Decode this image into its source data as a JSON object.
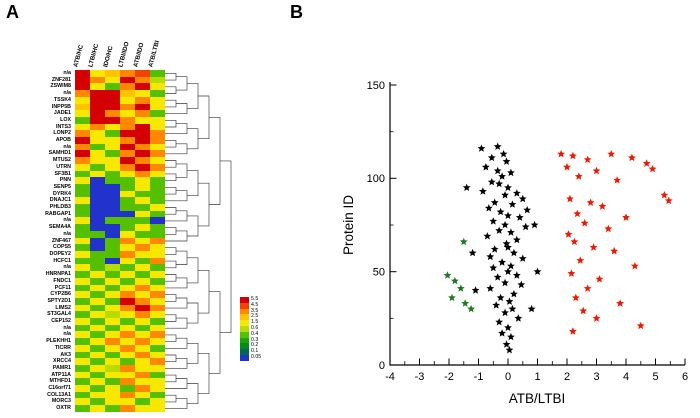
{
  "figure": {
    "panel_a_label": "A",
    "panel_b_label": "B"
  },
  "chart_data": [
    {
      "type": "heatmap",
      "panel": "A",
      "columns": [
        "ATB/HC",
        "LTBI/HC",
        "IDO/HC",
        "LTBI/IDO",
        "ATB/IDO",
        "ATB/LTBI"
      ],
      "rows": [
        "n/a",
        "ZNF281",
        "ZSWIM8",
        "n/a",
        "TSSK4",
        "INPP5B",
        "JADE1",
        "LOX",
        "INTS3",
        "LONP2",
        "APOB",
        "n/a",
        "SAMHD1",
        "MTUS2",
        "UTRN",
        "SF3B1",
        "PNN",
        "SENP5",
        "DYRK4",
        "DNAJC1",
        "PHLDB3",
        "RABGAP1",
        "n/a",
        "SEMA4A",
        "n/a",
        "ZNF467",
        "COPS5",
        "DOPEY2",
        "HCFC1",
        "n/a",
        "HNRNPA1",
        "FNDC1",
        "PCF11",
        "CYP2B6",
        "SPTY2D1",
        "LIMS2",
        "ST3GAL4",
        "CEP152",
        "n/a",
        "n/a",
        "PLEKHH1",
        "TICRR",
        "AK3",
        "XRCC4",
        "PAMR1",
        "ATP11A",
        "MTHFD1",
        "C16orf71",
        "COL13A1",
        "MORC3",
        "OXTR"
      ],
      "values": [
        [
          5.2,
          1.3,
          2.0,
          3.2,
          4.0,
          0.38
        ],
        [
          5.2,
          3.2,
          1.3,
          5.2,
          3.2,
          0.55
        ],
        [
          5.2,
          1.3,
          0.38,
          3.2,
          5.2,
          1.3
        ],
        [
          3.2,
          5.2,
          5.2,
          2.0,
          1.3,
          0.38
        ],
        [
          1.3,
          5.2,
          5.2,
          1.3,
          3.2,
          1.3
        ],
        [
          2.0,
          5.2,
          5.2,
          3.2,
          5.2,
          1.3
        ],
        [
          1.3,
          5.2,
          3.2,
          1.3,
          3.2,
          0.38
        ],
        [
          0.38,
          5.2,
          5.2,
          3.2,
          1.3,
          1.3
        ],
        [
          1.3,
          3.2,
          1.3,
          3.2,
          5.2,
          1.3
        ],
        [
          3.2,
          1.3,
          0.38,
          5.2,
          5.2,
          3.2
        ],
        [
          5.2,
          1.3,
          1.3,
          3.2,
          5.2,
          3.2
        ],
        [
          3.2,
          0.38,
          1.3,
          5.2,
          3.2,
          1.3
        ],
        [
          5.2,
          1.3,
          0.38,
          3.2,
          5.2,
          3.2
        ],
        [
          3.2,
          1.3,
          1.3,
          5.2,
          3.2,
          1.3
        ],
        [
          1.3,
          0.38,
          1.3,
          3.2,
          5.2,
          3.2
        ],
        [
          0.38,
          1.3,
          0.38,
          1.3,
          3.2,
          1.3
        ],
        [
          1.3,
          0.06,
          0.38,
          0.38,
          1.3,
          0.38
        ],
        [
          0.38,
          0.06,
          0.06,
          0.38,
          1.3,
          0.38
        ],
        [
          0.38,
          0.06,
          0.06,
          1.3,
          0.38,
          0.38
        ],
        [
          1.3,
          0.06,
          0.06,
          0.38,
          1.3,
          0.38
        ],
        [
          0.38,
          0.06,
          0.06,
          0.38,
          0.38,
          1.3
        ],
        [
          0.38,
          0.06,
          0.06,
          0.06,
          1.3,
          0.38
        ],
        [
          1.3,
          0.06,
          0.38,
          0.38,
          0.38,
          0.06
        ],
        [
          0.38,
          0.06,
          0.06,
          0.38,
          1.3,
          0.38
        ],
        [
          0.38,
          0.38,
          0.06,
          1.3,
          0.38,
          0.38
        ],
        [
          1.3,
          0.06,
          0.38,
          3.2,
          1.3,
          3.2
        ],
        [
          0.38,
          0.06,
          0.38,
          1.3,
          3.2,
          1.3
        ],
        [
          1.3,
          0.38,
          0.38,
          3.2,
          1.3,
          1.3
        ],
        [
          0.38,
          0.38,
          0.06,
          1.3,
          0.38,
          3.2
        ],
        [
          1.3,
          0.38,
          0.55,
          0.38,
          1.3,
          0.38
        ],
        [
          0.38,
          1.3,
          0.38,
          1.3,
          0.38,
          1.3
        ],
        [
          1.3,
          0.38,
          1.3,
          0.38,
          1.3,
          0.38
        ],
        [
          0.38,
          1.3,
          0.38,
          1.3,
          3.2,
          1.3
        ],
        [
          1.3,
          0.38,
          1.3,
          3.2,
          1.3,
          3.2
        ],
        [
          0.38,
          1.3,
          0.38,
          5.2,
          3.2,
          1.3
        ],
        [
          1.3,
          0.38,
          1.3,
          3.2,
          5.2,
          3.2
        ],
        [
          0.38,
          1.3,
          0.55,
          1.3,
          3.2,
          1.3
        ],
        [
          1.3,
          0.38,
          1.3,
          0.38,
          1.3,
          0.38
        ],
        [
          0.38,
          1.3,
          0.38,
          1.3,
          0.38,
          1.3
        ],
        [
          1.3,
          0.38,
          1.3,
          3.2,
          1.3,
          3.2
        ],
        [
          0.38,
          1.3,
          3.2,
          1.3,
          3.2,
          1.3
        ],
        [
          1.3,
          0.38,
          1.3,
          3.2,
          1.3,
          0.38
        ],
        [
          0.38,
          1.3,
          0.38,
          1.3,
          3.2,
          1.3
        ],
        [
          1.3,
          0.38,
          1.3,
          0.38,
          1.3,
          3.2
        ],
        [
          0.38,
          1.3,
          0.55,
          3.2,
          1.3,
          1.3
        ],
        [
          1.3,
          0.38,
          1.3,
          1.3,
          3.2,
          0.38
        ],
        [
          0.38,
          1.3,
          0.38,
          3.2,
          1.3,
          1.3
        ],
        [
          1.3,
          0.38,
          1.3,
          0.38,
          3.2,
          1.3
        ],
        [
          0.38,
          1.3,
          1.3,
          3.2,
          1.3,
          0.38
        ],
        [
          1.3,
          0.38,
          1.3,
          1.3,
          0.38,
          1.3
        ],
        [
          0.38,
          1.3,
          0.38,
          3.2,
          1.3,
          1.3
        ]
      ],
      "color_scale": {
        "ticks": [
          5.5,
          4.5,
          3.5,
          2.5,
          1.5,
          0.6,
          0.4,
          0.3,
          0.2,
          0.1,
          0.05
        ],
        "colors": [
          "#d40000",
          "#f04400",
          "#ff8800",
          "#ffc300",
          "#f6e800",
          "#b8dc00",
          "#55c000",
          "#1ea400",
          "#008c1e",
          "#006a50",
          "#2233cc"
        ]
      },
      "legend_position": "right",
      "row_dendrogram": true
    },
    {
      "type": "scatter",
      "panel": "B",
      "xlabel": "ATB/LTBI",
      "ylabel": "Protein ID",
      "xlim": [
        -4,
        6
      ],
      "ylim": [
        0,
        150
      ],
      "xticks": [
        -4,
        -3,
        -2,
        -1,
        0,
        1,
        2,
        3,
        4,
        5,
        6
      ],
      "yticks": [
        0,
        50,
        100,
        150
      ],
      "y_minor_ticks": [
        25,
        75,
        125
      ],
      "marker": "star",
      "grid": false,
      "legend": "none",
      "series": [
        {
          "name": "black",
          "color": "#000000",
          "points": [
            [
              -0.9,
              116
            ],
            [
              -0.35,
              117
            ],
            [
              -0.15,
              113
            ],
            [
              -0.55,
              111
            ],
            [
              -0.05,
              109
            ],
            [
              -0.75,
              106
            ],
            [
              -0.35,
              104
            ],
            [
              0.1,
              103
            ],
            [
              -0.2,
              101
            ],
            [
              -0.55,
              98
            ],
            [
              -0.3,
              97
            ],
            [
              0,
              95
            ],
            [
              -0.85,
              93
            ],
            [
              0.3,
              92
            ],
            [
              -0.1,
              91
            ],
            [
              0.5,
              89
            ],
            [
              -0.45,
              87
            ],
            [
              0.15,
              86
            ],
            [
              -0.65,
              84
            ],
            [
              0.65,
              83
            ],
            [
              -0.25,
              82
            ],
            [
              0,
              80
            ],
            [
              0.4,
              79
            ],
            [
              -0.5,
              77
            ],
            [
              -0.1,
              75
            ],
            [
              0.6,
              74
            ],
            [
              -0.3,
              72
            ],
            [
              0.1,
              71
            ],
            [
              -0.7,
              69
            ],
            [
              0.3,
              67
            ],
            [
              -0.05,
              65
            ],
            [
              0,
              63
            ],
            [
              -0.45,
              62
            ],
            [
              0.2,
              60
            ],
            [
              -0.6,
              58
            ],
            [
              0.5,
              57
            ],
            [
              -0.2,
              55
            ],
            [
              0.1,
              53
            ],
            [
              -0.5,
              52
            ],
            [
              0,
              50
            ],
            [
              0.3,
              48
            ],
            [
              -0.35,
              47
            ],
            [
              -0.1,
              44
            ],
            [
              0.45,
              43
            ],
            [
              -0.6,
              41
            ],
            [
              0.2,
              38
            ],
            [
              -0.25,
              36
            ],
            [
              0.05,
              34
            ],
            [
              -0.4,
              32
            ],
            [
              0.15,
              30
            ],
            [
              -0.1,
              28
            ],
            [
              0.35,
              25
            ],
            [
              -0.3,
              23
            ],
            [
              0,
              20
            ],
            [
              -0.2,
              17
            ],
            [
              0.1,
              15
            ],
            [
              -0.05,
              11
            ],
            [
              0.05,
              8
            ],
            [
              -1.4,
              95
            ],
            [
              -1.2,
              60
            ],
            [
              0.9,
              75
            ],
            [
              1,
              50
            ],
            [
              -1.1,
              40
            ],
            [
              0.8,
              30
            ]
          ]
        },
        {
          "name": "red",
          "color": "#f01800",
          "points": [
            [
              1.8,
              113
            ],
            [
              2.2,
              112
            ],
            [
              2.7,
              110
            ],
            [
              3.5,
              113
            ],
            [
              4.2,
              111
            ],
            [
              4.7,
              108
            ],
            [
              2,
              106
            ],
            [
              3,
              104
            ],
            [
              4.9,
              105
            ],
            [
              2.4,
              101
            ],
            [
              3.7,
              99
            ],
            [
              5.3,
              91
            ],
            [
              5.45,
              88
            ],
            [
              2.1,
              89
            ],
            [
              2.8,
              87
            ],
            [
              3.2,
              85
            ],
            [
              2.35,
              81
            ],
            [
              4,
              79
            ],
            [
              2.6,
              76
            ],
            [
              3.4,
              73
            ],
            [
              2.05,
              70
            ],
            [
              2.25,
              66
            ],
            [
              2.9,
              63
            ],
            [
              3.6,
              61
            ],
            [
              2.45,
              56
            ],
            [
              4.3,
              53
            ],
            [
              2.15,
              49
            ],
            [
              3.1,
              46
            ],
            [
              2.7,
              41
            ],
            [
              2.3,
              36
            ],
            [
              3.8,
              33
            ],
            [
              2.55,
              29
            ],
            [
              3,
              25
            ],
            [
              4.5,
              21
            ],
            [
              2.2,
              18
            ]
          ]
        },
        {
          "name": "green",
          "color": "#1f7a1f",
          "points": [
            [
              -1.5,
              66
            ],
            [
              -2.05,
              48
            ],
            [
              -1.8,
              45
            ],
            [
              -1.6,
              41
            ],
            [
              -1.9,
              36
            ],
            [
              -1.45,
              33
            ],
            [
              -1.25,
              30
            ]
          ]
        }
      ]
    }
  ]
}
